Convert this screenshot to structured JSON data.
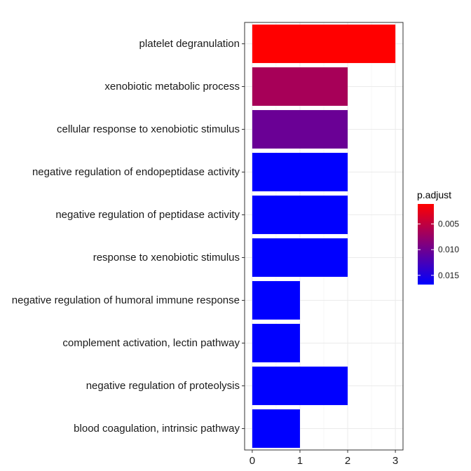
{
  "chart_data": {
    "type": "bar",
    "orientation": "horizontal",
    "categories": [
      "platelet degranulation",
      "xenobiotic metabolic process",
      "cellular response to xenobiotic stimulus",
      "negative regulation of endopeptidase activity",
      "negative regulation of peptidase activity",
      "response to xenobiotic stimulus",
      "negative regulation of humoral immune response",
      "complement activation, lectin pathway",
      "negative regulation of proteolysis",
      "blood coagulation, intrinsic pathway"
    ],
    "values": [
      3,
      2,
      2,
      2,
      2,
      2,
      1,
      1,
      2,
      1
    ],
    "p_adjust": [
      0.0011,
      0.0065,
      0.0103,
      0.0168,
      0.0168,
      0.0168,
      0.0168,
      0.0168,
      0.0168,
      0.0168
    ],
    "title": "",
    "xlabel": "",
    "ylabel": "",
    "xlim": [
      -0.16,
      3.16
    ],
    "xticks": [
      "0",
      "1",
      "2",
      "3"
    ],
    "xtick_values": [
      0,
      1,
      2,
      3
    ],
    "grid": true,
    "legend": {
      "title": "p.adjust",
      "position": "right",
      "ticks": [
        "0.005",
        "0.010",
        "0.015"
      ],
      "tick_values": [
        0.005,
        0.01,
        0.015
      ],
      "range": [
        0.0011,
        0.0168
      ],
      "color_low": "#FF0000",
      "color_high": "#0000FF"
    }
  }
}
